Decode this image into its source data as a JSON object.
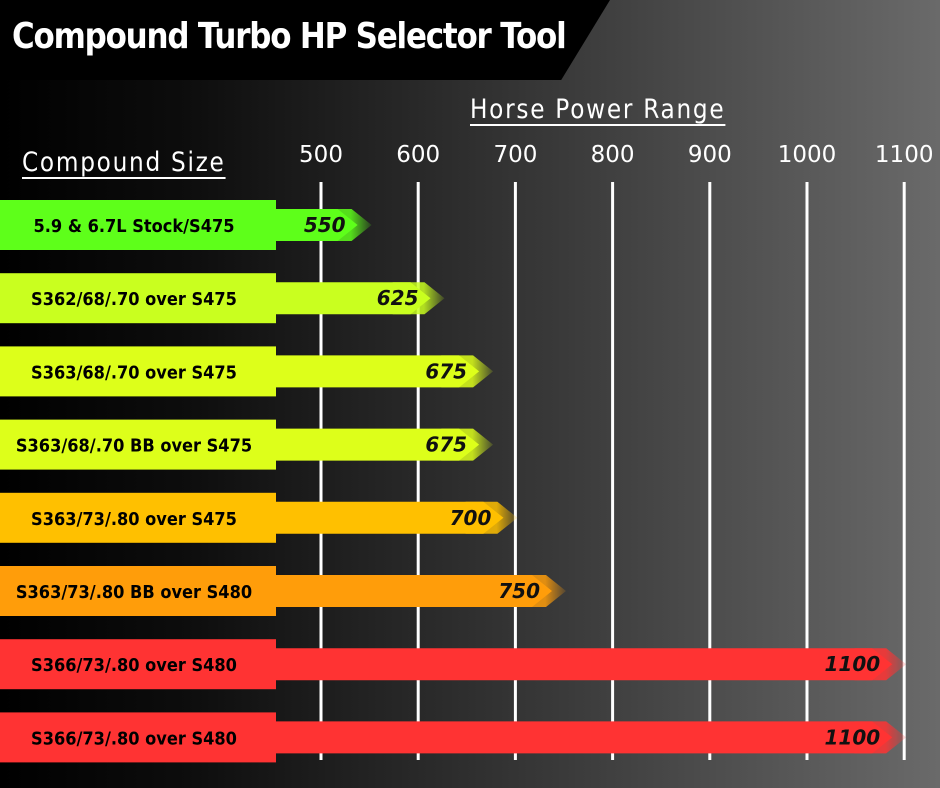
{
  "title": "Compound Turbo HP Selector Tool",
  "hp_header": "Horse Power Range",
  "size_header": "Compound Size",
  "chart_data": {
    "type": "bar",
    "orientation": "horizontal",
    "xlabel": "Horse Power Range",
    "ylabel": "Compound Size",
    "xlim": [
      400,
      1100
    ],
    "ticks": [
      500,
      600,
      700,
      800,
      900,
      1000,
      1100
    ],
    "grid": true,
    "categories": [
      "5.9 & 6.7L Stock/S475",
      "S362/68/.70 over S475",
      "S363/68/.70 over S475",
      "S363/68/.70 BB over S475",
      "S363/73/.80 over S475",
      "S363/73/.80 BB over S480",
      "S366/73/.80 over S480",
      "S366/73/.80 over S480"
    ],
    "values": [
      550,
      625,
      675,
      675,
      700,
      750,
      1100,
      1100
    ],
    "colors": [
      "#5eff1a",
      "#c9ff1f",
      "#ddff1a",
      "#ddff1a",
      "#ffc000",
      "#ff9d0a",
      "#ff3333",
      "#ff3333"
    ]
  }
}
